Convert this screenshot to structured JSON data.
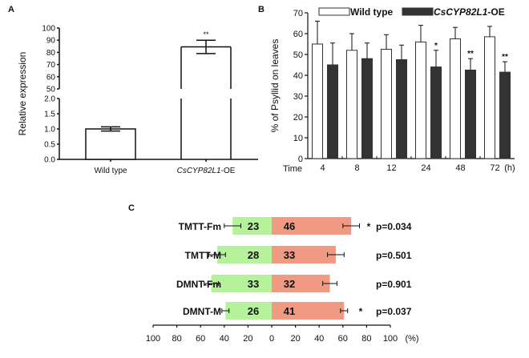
{
  "chart_data": [
    {
      "panel": "A",
      "type": "bar",
      "ylabel": "Relative expression",
      "xlabel": "",
      "categories": [
        "Wild type",
        "CsCYP82L1-OE"
      ],
      "category_italic_part": [
        "",
        "CsCYP82L1"
      ],
      "values": [
        1.0,
        84.5
      ],
      "errors": [
        0.07,
        5.5
      ],
      "annotations": [
        "",
        "**"
      ],
      "y_broken_axis": {
        "lower_range": [
          0,
          2.0
        ],
        "upper_range": [
          50,
          100
        ]
      },
      "y_ticks_lower": [
        "0.0",
        "0.5",
        "1.0",
        "1.5",
        "2.0"
      ],
      "y_ticks_upper": [
        "50",
        "60",
        "70",
        "80",
        "90",
        "100"
      ],
      "bar_fill": "#ffffff",
      "bar_stroke": "#111111"
    },
    {
      "panel": "B",
      "type": "bar",
      "ylabel": "% of Psyllid on leaves",
      "xlabel_prefix": "Time",
      "xlabel_unit": "(h)",
      "categories": [
        "4",
        "8",
        "12",
        "24",
        "48",
        "72"
      ],
      "ylim": [
        0,
        70
      ],
      "y_ticks": [
        "0",
        "10",
        "20",
        "30",
        "40",
        "50",
        "60",
        "70"
      ],
      "legend_position": "top",
      "series": [
        {
          "name": "Wild type",
          "color": "#ffffff",
          "values": [
            55,
            52,
            52.5,
            56,
            57.5,
            58.5
          ],
          "errors": [
            11,
            8,
            7,
            8,
            5.5,
            5
          ],
          "annotations": [
            "",
            "",
            "",
            "",
            "",
            ""
          ]
        },
        {
          "name": "CsCYP82L1-OE",
          "color": "#333333",
          "values": [
            45,
            48,
            47.5,
            44,
            42.5,
            41.5
          ],
          "errors": [
            10.5,
            7.5,
            7,
            8,
            5.5,
            5
          ],
          "annotations": [
            "",
            "",
            "",
            "*",
            "**",
            "**"
          ]
        }
      ]
    },
    {
      "panel": "C",
      "type": "bar",
      "orientation": "horizontal-diverging",
      "categories": [
        "TMTT-Fm",
        "TMTT-M",
        "DMNT-Fm",
        "DMNT-M"
      ],
      "x_unit": "(%)",
      "x_ticks": [
        "100",
        "80",
        "60",
        "40",
        "20",
        "0",
        "20",
        "40",
        "60",
        "80",
        "100"
      ],
      "xlim": [
        -100,
        100
      ],
      "series": [
        {
          "name": "left",
          "color": "#b5f29b",
          "percent": [
            33,
            46,
            51,
            39
          ],
          "errors": [
            7,
            7,
            6,
            3
          ],
          "counts": [
            "23",
            "28",
            "33",
            "26"
          ]
        },
        {
          "name": "right",
          "color": "#f09a84",
          "percent": [
            67,
            54,
            49,
            61
          ],
          "errors": [
            7,
            7,
            6,
            3
          ],
          "counts": [
            "46",
            "33",
            "32",
            "41"
          ]
        }
      ],
      "significance": [
        "*",
        "",
        "",
        "*"
      ],
      "p_values": [
        "p=0.034",
        "p=0.501",
        "p=0.901",
        "p=0.037"
      ]
    }
  ],
  "panel_labels": [
    "A",
    "B",
    "C"
  ]
}
